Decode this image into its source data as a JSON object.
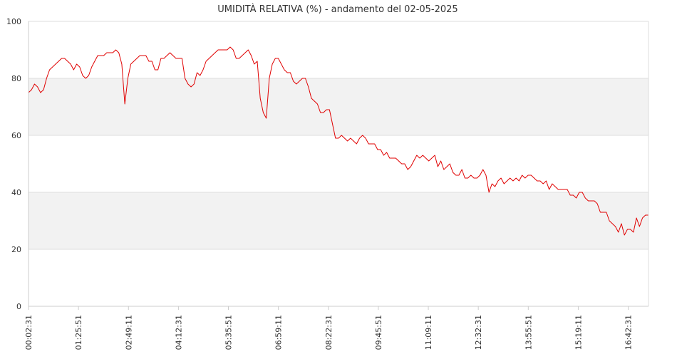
{
  "chart_data": {
    "type": "line",
    "title": "UMIDITÀ RELATIVA (%) - andamento del 02-05-2025",
    "xlabel": "",
    "ylabel": "",
    "ylim": [
      0,
      100
    ],
    "y_ticks": [
      0,
      20,
      40,
      60,
      80,
      100
    ],
    "x_tick_labels": [
      "00:02:31",
      "01:25:51",
      "02:49:11",
      "04:12:31",
      "05:35:51",
      "06:59:11",
      "08:22:31",
      "09:45:51",
      "11:09:11",
      "12:32:31",
      "13:55:51",
      "15:19:11",
      "16:42:31"
    ],
    "grid": "horizontal",
    "banded_background": true,
    "colors": {
      "line": "#e00000",
      "band": "#f2f2f2",
      "grid": "#dddddd",
      "axis": "#cccccc"
    },
    "series": [
      {
        "values": [
          75,
          76,
          78,
          77,
          75,
          76,
          80,
          83,
          84,
          85,
          86,
          87,
          87,
          86,
          85,
          83,
          85,
          84,
          81,
          80,
          81,
          84,
          86,
          88,
          88,
          88,
          89,
          89,
          89,
          90,
          89,
          85,
          71,
          80,
          85,
          86,
          87,
          88,
          88,
          88,
          86,
          86,
          83,
          83,
          87,
          87,
          88,
          89,
          88,
          87,
          87,
          87,
          80,
          78,
          77,
          78,
          82,
          81,
          83,
          86,
          87,
          88,
          89,
          90,
          90,
          90,
          90,
          91,
          90,
          87,
          87,
          88,
          89,
          90,
          88,
          85,
          86,
          73,
          68,
          66,
          80,
          85,
          87,
          87,
          85,
          83,
          82,
          82,
          79,
          78,
          79,
          80,
          80,
          77,
          73,
          72,
          71,
          68,
          68,
          69,
          69,
          64,
          59,
          59,
          60,
          59,
          58,
          59,
          58,
          57,
          59,
          60,
          59,
          57,
          57,
          57,
          55,
          55,
          53,
          54,
          52,
          52,
          52,
          51,
          50,
          50,
          48,
          49,
          51,
          53,
          52,
          53,
          52,
          51,
          52,
          53,
          49,
          51,
          48,
          49,
          50,
          47,
          46,
          46,
          48,
          45,
          45,
          46,
          45,
          45,
          46,
          48,
          46,
          40,
          43,
          42,
          44,
          45,
          43,
          44,
          45,
          44,
          45,
          44,
          46,
          45,
          46,
          46,
          45,
          44,
          44,
          43,
          44,
          41,
          43,
          42,
          41,
          41,
          41,
          41,
          39,
          39,
          38,
          40,
          40,
          38,
          37,
          37,
          37,
          36,
          33,
          33,
          33,
          30,
          29,
          28,
          26,
          29,
          25,
          27,
          27,
          26,
          31,
          28,
          31,
          32,
          32
        ]
      }
    ]
  }
}
